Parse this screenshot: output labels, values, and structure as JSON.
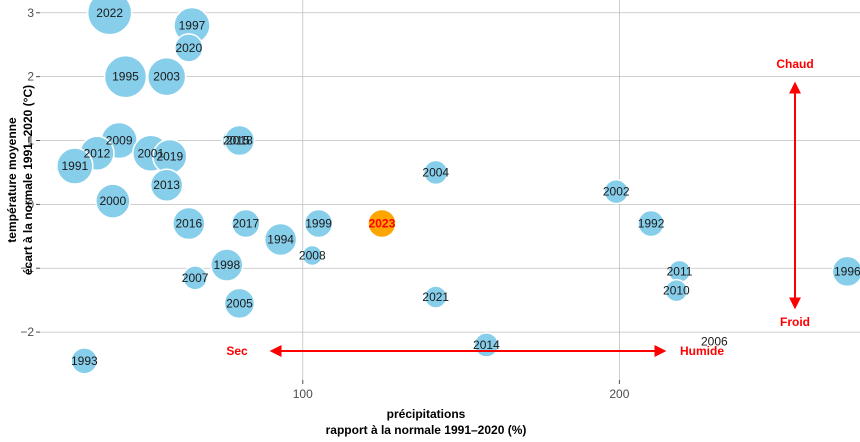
{
  "chart_data": {
    "type": "scatter",
    "xlabel": [
      "précipitations",
      "rapport à la normale 1991–2020 (%)"
    ],
    "ylabel": [
      "température moyenne",
      "écart à la normale 1991–2020 (°C)"
    ],
    "xlim": [
      17,
      276
    ],
    "ylim": [
      -2.75,
      3.2
    ],
    "x_ticks": [
      100,
      200
    ],
    "y_ticks": [
      -2,
      -1,
      0,
      1,
      2,
      3
    ],
    "y_tick_labels": [
      "−2",
      "−1",
      "0",
      "1",
      "2",
      "3"
    ],
    "grid": true,
    "colors": {
      "point": "#87ceeb",
      "highlight": "#ffa500",
      "highlight_text": "#ff0000",
      "annotation": "#ff0000",
      "grid": "#bfbfbf"
    },
    "highlight_year": "2023",
    "points": [
      {
        "year": "2022",
        "x": 39,
        "y": 3.0,
        "s": 22
      },
      {
        "year": "1997",
        "x": 65,
        "y": 2.8,
        "s": 18
      },
      {
        "year": "2020",
        "x": 64,
        "y": 2.45,
        "s": 14
      },
      {
        "year": "1995",
        "x": 44,
        "y": 2.0,
        "s": 21
      },
      {
        "year": "2003",
        "x": 57,
        "y": 2.0,
        "s": 19
      },
      {
        "year": "2009",
        "x": 42,
        "y": 1.0,
        "s": 18
      },
      {
        "year": "2001",
        "x": 52,
        "y": 0.8,
        "s": 18
      },
      {
        "year": "2019",
        "x": 58,
        "y": 0.75,
        "s": 17
      },
      {
        "year": "2012",
        "x": 35,
        "y": 0.8,
        "s": 17
      },
      {
        "year": "1991",
        "x": 28,
        "y": 0.6,
        "s": 18
      },
      {
        "year": "2015",
        "x": 79,
        "y": 1.0,
        "s": 14
      },
      {
        "year": "2018",
        "x": 80,
        "y": 1.0,
        "s": 15
      },
      {
        "year": "2013",
        "x": 57,
        "y": 0.3,
        "s": 16
      },
      {
        "year": "2000",
        "x": 40,
        "y": 0.05,
        "s": 17
      },
      {
        "year": "2004",
        "x": 142,
        "y": 0.5,
        "s": 12
      },
      {
        "year": "2002",
        "x": 199,
        "y": 0.2,
        "s": 12
      },
      {
        "year": "2016",
        "x": 64,
        "y": -0.3,
        "s": 16
      },
      {
        "year": "2017",
        "x": 82,
        "y": -0.3,
        "s": 14
      },
      {
        "year": "1999",
        "x": 105,
        "y": -0.3,
        "s": 14
      },
      {
        "year": "2023",
        "x": 125,
        "y": -0.3,
        "s": 14
      },
      {
        "year": "1992",
        "x": 210,
        "y": -0.3,
        "s": 13
      },
      {
        "year": "1994",
        "x": 93,
        "y": -0.55,
        "s": 16
      },
      {
        "year": "2008",
        "x": 103,
        "y": -0.8,
        "s": 10
      },
      {
        "year": "1998",
        "x": 76,
        "y": -0.95,
        "s": 16
      },
      {
        "year": "2007",
        "x": 66,
        "y": -1.15,
        "s": 12
      },
      {
        "year": "2011",
        "x": 219,
        "y": -1.05,
        "s": 11
      },
      {
        "year": "1996",
        "x": 272,
        "y": -1.05,
        "s": 15
      },
      {
        "year": "2010",
        "x": 218,
        "y": -1.35,
        "s": 11
      },
      {
        "year": "2021",
        "x": 142,
        "y": -1.45,
        "s": 11
      },
      {
        "year": "2005",
        "x": 80,
        "y": -1.55,
        "s": 15
      },
      {
        "year": "2006",
        "x": 230,
        "y": -2.15,
        "s": 0
      },
      {
        "year": "2014",
        "x": 158,
        "y": -2.2,
        "s": 12
      },
      {
        "year": "1993",
        "x": 31,
        "y": -2.45,
        "s": 13
      }
    ],
    "annotations": {
      "chaud": "Chaud",
      "froid": "Froid",
      "sec": "Sec",
      "humide": "Humide"
    }
  }
}
